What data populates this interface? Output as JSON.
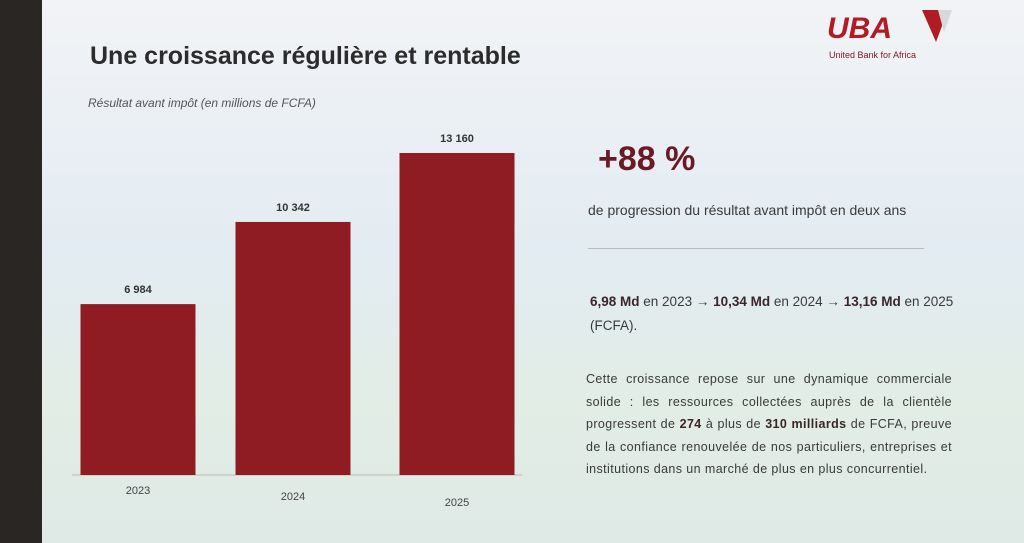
{
  "chart_data": {
    "type": "bar",
    "title": "Une croissance régulière et rentable",
    "subtitle": "Résultat avant impôt (en millions de FCFA)",
    "categories": [
      "2023",
      "2024",
      "2025"
    ],
    "values": [
      6984,
      10342,
      13160
    ],
    "value_labels": [
      "6 984",
      "10 342",
      "13 160"
    ],
    "color": "#8e1c22"
  },
  "logo": {
    "name": "UBA",
    "tagline": "United Bank for Africa"
  },
  "highlight": {
    "figure": "+88 %",
    "caption": "de progression du résultat avant impôt en deux ans"
  },
  "summary": [
    "6,98 Md",
    " en 2023 → ",
    "10,34 Md",
    " en 2024 → ",
    "13,16 Md",
    " en 2025 (FCFA)."
  ],
  "paragraph": [
    "Cette croissance repose sur une dynamique commerciale solide : les ressources collectées auprès de la clientèle progressent de ",
    "274",
    " à plus de ",
    "310 milliards",
    " de FCFA, preuve de la confiance renouvelée de nos particuliers, entreprises et institutions dans un marché de plus en plus concurrentiel."
  ]
}
